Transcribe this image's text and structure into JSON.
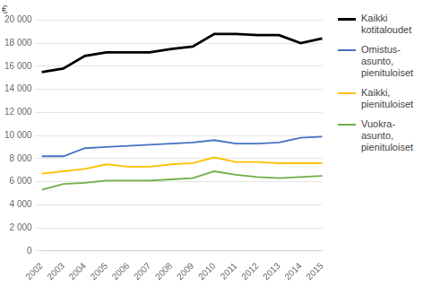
{
  "chart_data": {
    "type": "line",
    "ylabel": "€",
    "categories": [
      "2002",
      "2003",
      "2004",
      "2005",
      "2006",
      "2007",
      "2008",
      "2009",
      "2010",
      "2011",
      "2012",
      "2013",
      "2014",
      "2015"
    ],
    "series": [
      {
        "name": "Kaikki\nkotitaloudet",
        "color": "#000000",
        "values": [
          15500,
          15800,
          16900,
          17200,
          17200,
          17200,
          17500,
          17700,
          18800,
          18800,
          18700,
          18700,
          18000,
          18400
        ]
      },
      {
        "name": "Omistus-\nasunto,\npienituloiset",
        "color": "#4472C4",
        "values": [
          8200,
          8200,
          8900,
          9000,
          9100,
          9200,
          9300,
          9400,
          9600,
          9300,
          9300,
          9400,
          9800,
          9900
        ]
      },
      {
        "name": "Kaikki,\npienituloiset",
        "color": "#FFC000",
        "values": [
          6700,
          6900,
          7100,
          7500,
          7300,
          7300,
          7500,
          7600,
          8100,
          7700,
          7700,
          7600,
          7600,
          7600
        ]
      },
      {
        "name": "Vuokra-\nasunto,\npienituloiset",
        "color": "#70AD47",
        "values": [
          5300,
          5800,
          5900,
          6100,
          6100,
          6100,
          6200,
          6300,
          6900,
          6600,
          6400,
          6300,
          6400,
          6500
        ]
      }
    ],
    "ylim": [
      0,
      20000
    ],
    "yticks": [
      0,
      {
        "value": 2000,
        "label": "2 000"
      },
      {
        "value": 4000,
        "label": "4 000"
      },
      {
        "value": 6000,
        "label": "6 000"
      },
      {
        "value": 8000,
        "label": "8 000"
      },
      {
        "value": 10000,
        "label": "10 000"
      },
      {
        "value": 12000,
        "label": "12 000"
      },
      {
        "value": 14000,
        "label": "14 000"
      },
      {
        "value": 16000,
        "label": "16 000"
      },
      {
        "value": 18000,
        "label": "18 000"
      },
      {
        "value": 20000,
        "label": "20 000"
      }
    ],
    "grid": true,
    "legend": "right"
  }
}
